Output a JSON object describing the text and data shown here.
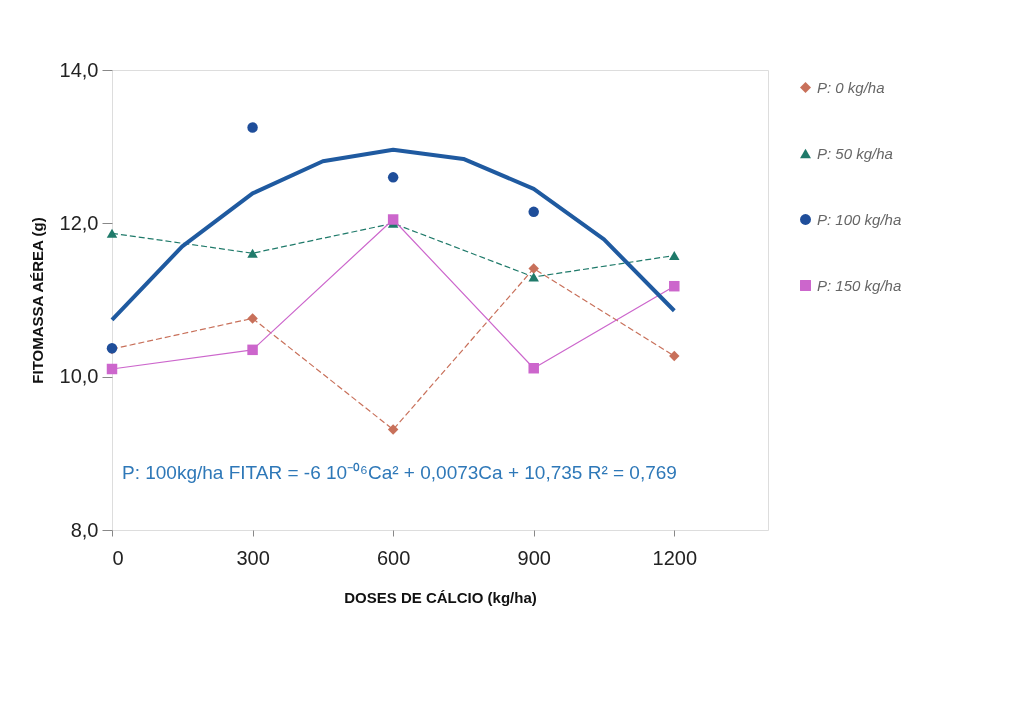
{
  "chart_data": {
    "type": "line",
    "xlabel": "DOSES DE CÁLCIO (kg/ha)",
    "ylabel": "FITOMASSA AÉREA (g)",
    "x": [
      0,
      300,
      600,
      900,
      1200
    ],
    "xlim": [
      0,
      1400
    ],
    "xticks": [
      0,
      300,
      600,
      900,
      1200
    ],
    "ylim": [
      8,
      14
    ],
    "yticks": [
      {
        "value": 8,
        "label": "8,0"
      },
      {
        "value": 10,
        "label": "10,0"
      },
      {
        "value": 12,
        "label": "12,0"
      },
      {
        "value": 14,
        "label": "14,0"
      }
    ],
    "grid": false,
    "legend": "right",
    "series": [
      {
        "name": "P: 0 kg/ha",
        "marker": "diamond",
        "line_style": "dashed",
        "color": "#c8705a",
        "values": [
          10.36,
          10.76,
          9.31,
          11.41,
          10.27
        ]
      },
      {
        "name": "P: 50 kg/ha",
        "marker": "triangle",
        "line_style": "dashed",
        "color": "#1f7a6a",
        "values": [
          11.87,
          11.61,
          12.0,
          11.3,
          11.58
        ]
      },
      {
        "name": "P: 100 kg/ha",
        "type": "scatter",
        "marker": "circle",
        "color": "#1f4e9a",
        "values": [
          10.37,
          13.25,
          12.6,
          12.15,
          null
        ]
      },
      {
        "name": "P: 150 kg/ha",
        "marker": "square",
        "line_style": "solid",
        "color": "#cc66cc",
        "values": [
          10.1,
          10.35,
          12.05,
          10.11,
          11.18
        ]
      },
      {
        "marker": "none",
        "line_style": "solid",
        "color": "#1f5aa0",
        "x": [
          0,
          150,
          300,
          450,
          600,
          750,
          900,
          1050,
          1200
        ],
        "values": [
          10.74,
          11.7,
          12.39,
          12.81,
          12.96,
          12.84,
          12.45,
          11.79,
          10.86
        ]
      }
    ],
    "annotations": [
      "P: 100kg/ha FITAR = -6 10⁻⁰⁶Ca² + 0,0073Ca + 10,735  R² = 0,769"
    ]
  }
}
